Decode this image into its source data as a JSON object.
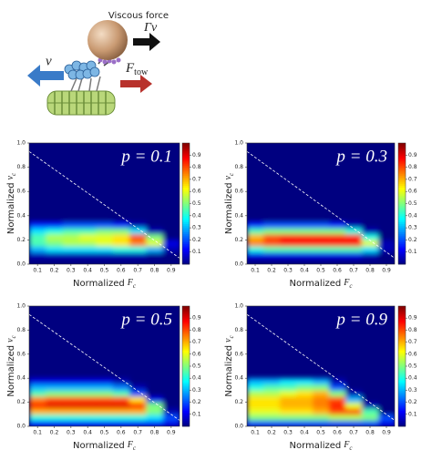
{
  "schematic": {
    "viscous_force": "Viscous force",
    "gamma": "Γ",
    "gamma_v": "v",
    "v": "v",
    "f": "F",
    "tow": "tow"
  },
  "chart_data": [
    {
      "type": "heatmap",
      "title": "p = 0.1",
      "xlabel": {
        "text": "Normalized",
        "var": "F",
        "sub": "c"
      },
      "ylabel": {
        "text": "Normalized",
        "var": "v",
        "sub": "c"
      },
      "xlim": [
        0.05,
        0.95
      ],
      "ylim": [
        0,
        1
      ],
      "xticks": [
        0.1,
        0.2,
        0.3,
        0.4,
        0.5,
        0.6,
        0.7,
        0.8,
        0.9
      ],
      "yticks": [
        {
          "value": 0,
          "label": "0.0"
        },
        0.2,
        0.4,
        0.6,
        0.8,
        {
          "value": 1,
          "label": "1.0"
        }
      ],
      "xbins": [
        0.05,
        0.15,
        0.25,
        0.35,
        0.45,
        0.55,
        0.65,
        0.75,
        0.85,
        0.95
      ],
      "ybins": [
        0,
        0.05,
        0.1,
        0.15,
        0.2,
        0.25,
        0.3,
        0.35,
        0.4
      ],
      "z": [
        [
          0,
          0,
          0,
          0,
          0,
          0,
          0,
          0,
          0
        ],
        [
          0.05,
          0.05,
          0.05,
          0.05,
          0.05,
          0.05,
          0.05,
          0.02,
          0
        ],
        [
          0.3,
          0.35,
          0.35,
          0.35,
          0.35,
          0.4,
          0.4,
          0.3,
          0.05
        ],
        [
          0.45,
          0.5,
          0.55,
          0.55,
          0.6,
          0.65,
          0.75,
          0.6,
          0.1
        ],
        [
          0.45,
          0.55,
          0.55,
          0.6,
          0.6,
          0.65,
          0.8,
          0.5,
          0
        ],
        [
          0.35,
          0.4,
          0.45,
          0.45,
          0.5,
          0.5,
          0.35,
          0.05,
          0
        ],
        [
          0.15,
          0.15,
          0.2,
          0.2,
          0.2,
          0.15,
          0.05,
          0,
          0
        ],
        [
          0,
          0,
          0,
          0,
          0,
          0,
          0,
          0,
          0
        ]
      ],
      "colormap": "jet",
      "zlim": [
        0,
        1
      ],
      "zticks": [
        0.1,
        0.2,
        0.3,
        0.4,
        0.5,
        0.6,
        0.7,
        0.8,
        0.9
      ],
      "reference_line": {
        "x": [
          0.05,
          0.95
        ],
        "y": [
          0.93,
          0.05
        ],
        "color": "#ffffff"
      }
    },
    {
      "type": "heatmap",
      "title": "p = 0.3",
      "xlabel": {
        "text": "Normalized",
        "var": "F",
        "sub": "c"
      },
      "ylabel": {
        "text": "Normalized",
        "var": "v",
        "sub": "c"
      },
      "xlim": [
        0.05,
        0.95
      ],
      "ylim": [
        0,
        1
      ],
      "xticks": [
        0.1,
        0.2,
        0.3,
        0.4,
        0.5,
        0.6,
        0.7,
        0.8,
        0.9
      ],
      "yticks": [
        {
          "value": 0,
          "label": "0.0"
        },
        0.2,
        0.4,
        0.6,
        0.8,
        {
          "value": 1,
          "label": "1.0"
        }
      ],
      "xbins": [
        0.05,
        0.15,
        0.25,
        0.35,
        0.45,
        0.55,
        0.65,
        0.75,
        0.85,
        0.95
      ],
      "ybins": [
        0,
        0.05,
        0.1,
        0.15,
        0.2,
        0.25,
        0.3,
        0.35,
        0.4
      ],
      "z": [
        [
          0,
          0,
          0,
          0,
          0,
          0,
          0,
          0,
          0
        ],
        [
          0.1,
          0.1,
          0.1,
          0.1,
          0.1,
          0.1,
          0.1,
          0.05,
          0
        ],
        [
          0.4,
          0.45,
          0.45,
          0.45,
          0.45,
          0.45,
          0.45,
          0.35,
          0.05
        ],
        [
          0.75,
          0.8,
          0.85,
          0.85,
          0.85,
          0.85,
          0.85,
          0.6,
          0.05
        ],
        [
          0.7,
          0.8,
          0.85,
          0.85,
          0.85,
          0.85,
          0.85,
          0.4,
          0
        ],
        [
          0.45,
          0.5,
          0.5,
          0.5,
          0.5,
          0.5,
          0.4,
          0.05,
          0
        ],
        [
          0.15,
          0.2,
          0.2,
          0.2,
          0.2,
          0.15,
          0.05,
          0,
          0
        ],
        [
          0,
          0,
          0,
          0,
          0,
          0,
          0,
          0,
          0
        ]
      ],
      "colormap": "jet",
      "zlim": [
        0,
        1
      ],
      "zticks": [
        0.1,
        0.2,
        0.3,
        0.4,
        0.5,
        0.6,
        0.7,
        0.8,
        0.9
      ],
      "reference_line": {
        "x": [
          0.05,
          0.95
        ],
        "y": [
          0.93,
          0.05
        ],
        "color": "#ffffff"
      }
    },
    {
      "type": "heatmap",
      "title": "p = 0.5",
      "xlabel": {
        "text": "Normalized",
        "var": "F",
        "sub": "c"
      },
      "ylabel": {
        "text": "Normalized",
        "var": "v",
        "sub": "c"
      },
      "xlim": [
        0.05,
        0.95
      ],
      "ylim": [
        0,
        1
      ],
      "xticks": [
        0.1,
        0.2,
        0.3,
        0.4,
        0.5,
        0.6,
        0.7,
        0.8,
        0.9
      ],
      "yticks": [
        {
          "value": 0,
          "label": "0.0"
        },
        0.2,
        0.4,
        0.6,
        0.8,
        {
          "value": 1,
          "label": "1.0"
        }
      ],
      "xbins": [
        0.05,
        0.15,
        0.25,
        0.35,
        0.45,
        0.55,
        0.65,
        0.75,
        0.85,
        0.95
      ],
      "ybins": [
        0,
        0.05,
        0.1,
        0.15,
        0.2,
        0.25,
        0.3,
        0.35,
        0.4
      ],
      "z": [
        [
          0.15,
          0.15,
          0.15,
          0.15,
          0.15,
          0.15,
          0.15,
          0.15,
          0.1
        ],
        [
          0.4,
          0.4,
          0.4,
          0.4,
          0.4,
          0.4,
          0.4,
          0.35,
          0.2
        ],
        [
          0.7,
          0.7,
          0.7,
          0.7,
          0.7,
          0.7,
          0.7,
          0.5,
          0.05
        ],
        [
          0.85,
          0.9,
          0.9,
          0.9,
          0.9,
          0.9,
          0.85,
          0.5,
          0
        ],
        [
          0.75,
          0.8,
          0.8,
          0.8,
          0.8,
          0.8,
          0.65,
          0.1,
          0
        ],
        [
          0.45,
          0.5,
          0.5,
          0.5,
          0.5,
          0.45,
          0.2,
          0,
          0
        ],
        [
          0.3,
          0.3,
          0.3,
          0.3,
          0.3,
          0.25,
          0.05,
          0,
          0
        ],
        [
          0.1,
          0.1,
          0.1,
          0.1,
          0.1,
          0.05,
          0,
          0,
          0
        ]
      ],
      "colormap": "jet",
      "zlim": [
        0,
        1
      ],
      "zticks": [
        0.1,
        0.2,
        0.3,
        0.4,
        0.5,
        0.6,
        0.7,
        0.8,
        0.9
      ],
      "reference_line": {
        "x": [
          0.05,
          0.95
        ],
        "y": [
          0.93,
          0.05
        ],
        "color": "#ffffff"
      }
    },
    {
      "type": "heatmap",
      "title": "p = 0.9",
      "xlabel": {
        "text": "Normalized",
        "var": "F",
        "sub": "c"
      },
      "ylabel": {
        "text": "Normalized",
        "var": "v",
        "sub": "c"
      },
      "xlim": [
        0.05,
        0.95
      ],
      "ylim": [
        0,
        1
      ],
      "xticks": [
        0.1,
        0.2,
        0.3,
        0.4,
        0.5,
        0.6,
        0.7,
        0.8,
        0.9
      ],
      "yticks": [
        {
          "value": 0,
          "label": "0.0"
        },
        0.2,
        0.4,
        0.6,
        0.8,
        {
          "value": 1,
          "label": "1.0"
        }
      ],
      "xbins": [
        0.05,
        0.15,
        0.25,
        0.35,
        0.45,
        0.55,
        0.65,
        0.75,
        0.85,
        0.95
      ],
      "ybins": [
        0,
        0.05,
        0.1,
        0.15,
        0.2,
        0.25,
        0.3,
        0.35,
        0.4
      ],
      "z": [
        [
          0.2,
          0.2,
          0.2,
          0.2,
          0.2,
          0.2,
          0.2,
          0.2,
          0.1
        ],
        [
          0.5,
          0.5,
          0.5,
          0.5,
          0.5,
          0.55,
          0.55,
          0.5,
          0.2
        ],
        [
          0.6,
          0.6,
          0.65,
          0.65,
          0.7,
          0.8,
          0.8,
          0.45,
          0
        ],
        [
          0.65,
          0.65,
          0.7,
          0.7,
          0.75,
          0.85,
          0.6,
          0.05,
          0
        ],
        [
          0.65,
          0.65,
          0.7,
          0.7,
          0.75,
          0.8,
          0.3,
          0,
          0
        ],
        [
          0.55,
          0.55,
          0.6,
          0.65,
          0.7,
          0.5,
          0.05,
          0,
          0
        ],
        [
          0.4,
          0.45,
          0.45,
          0.5,
          0.5,
          0.2,
          0,
          0,
          0
        ],
        [
          0.3,
          0.3,
          0.35,
          0.35,
          0.3,
          0.05,
          0,
          0,
          0
        ]
      ],
      "colormap": "jet",
      "zlim": [
        0,
        1
      ],
      "zticks": [
        0.1,
        0.2,
        0.3,
        0.4,
        0.5,
        0.6,
        0.7,
        0.8,
        0.9
      ],
      "reference_line": {
        "x": [
          0.05,
          0.95
        ],
        "y": [
          0.93,
          0.05
        ],
        "color": "#ffffff"
      }
    }
  ]
}
